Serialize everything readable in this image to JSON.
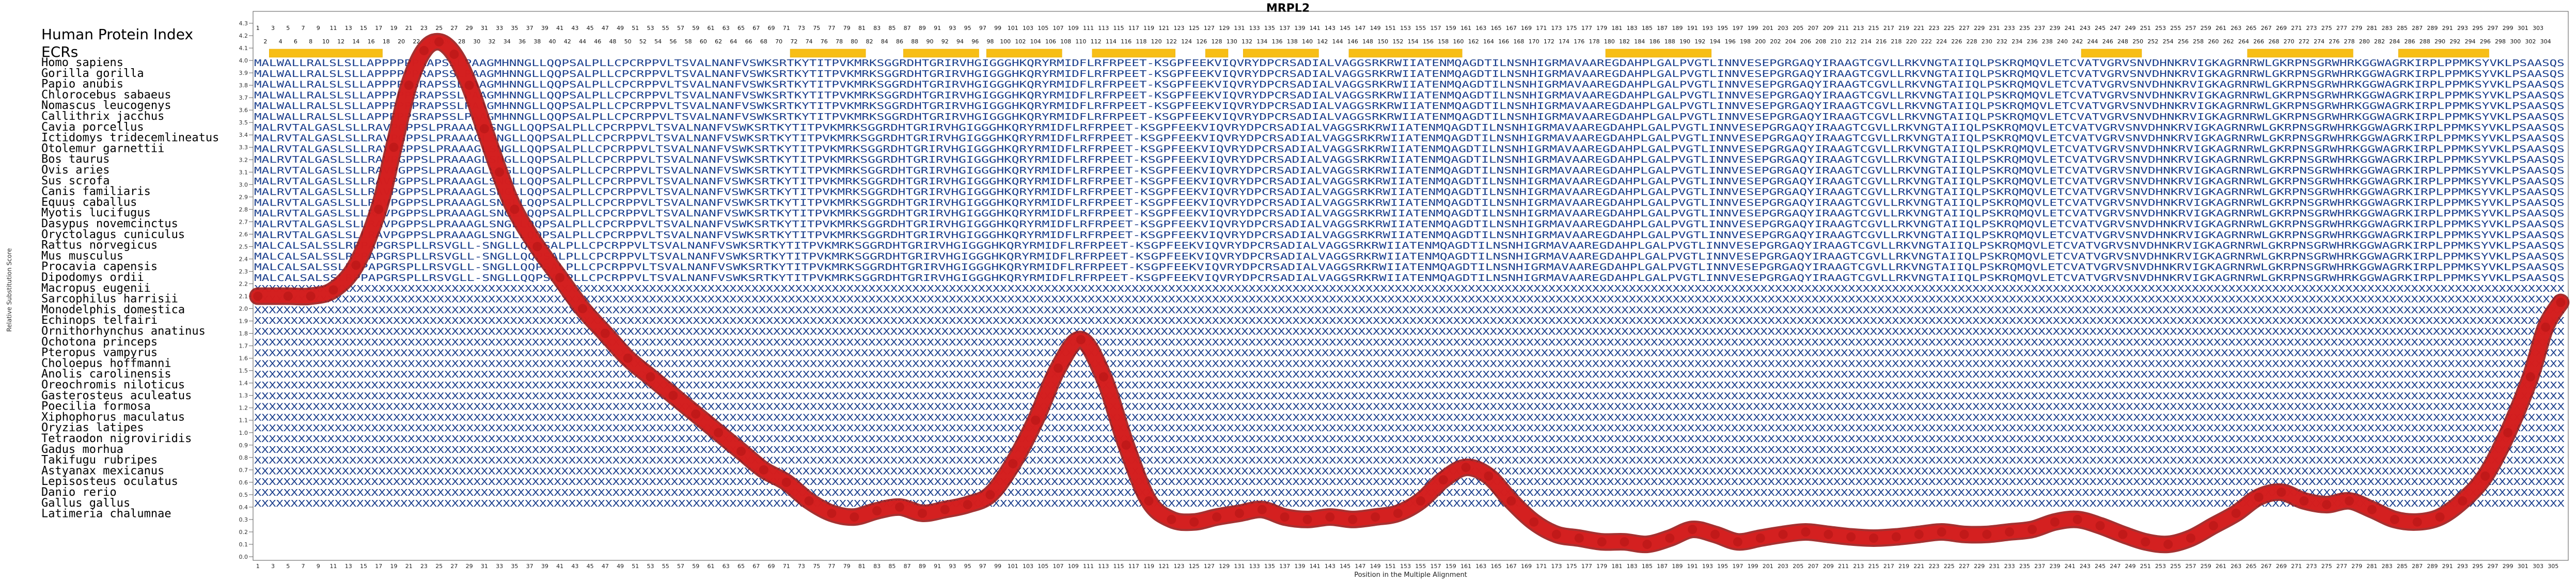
{
  "chart_data": {
    "type": "line",
    "title": "MRPL2",
    "xlabel": "Position in the Multiple Alignment",
    "ylabel": "Relative Substitution Score",
    "xlim": [
      1,
      306
    ],
    "ylim": [
      0.0,
      4.3
    ],
    "grid": false,
    "y_ticks": [
      "0.0",
      "0.1",
      "0.2",
      "0.3",
      "0.4",
      "0.5",
      "0.6",
      "0.7",
      "0.8",
      "0.9",
      "1.0",
      "1.1",
      "1.2",
      "1.3",
      "1.4",
      "1.5",
      "1.6",
      "1.7",
      "1.8",
      "1.9",
      "2.0",
      "2.1",
      "2.2",
      "2.3",
      "2.4",
      "2.5",
      "2.6",
      "2.7",
      "2.8",
      "2.9",
      "3.0",
      "3.1",
      "3.2",
      "3.3",
      "3.4",
      "3.5",
      "3.6",
      "3.7",
      "3.8",
      "3.9",
      "4.0",
      "4.1",
      "4.2",
      "4.3"
    ],
    "header_labels": [
      "Human Protein Index",
      "ECRs"
    ],
    "human_index_top_max": 304,
    "human_index_bottom_max": 303,
    "alignment_length": 306,
    "ecr_intervals": [
      [
        3,
        17
      ],
      [
        72,
        81
      ],
      [
        87,
        96
      ],
      [
        98,
        107
      ],
      [
        112,
        122
      ],
      [
        127,
        129
      ],
      [
        132,
        141
      ],
      [
        146,
        160
      ],
      [
        180,
        193
      ],
      [
        243,
        250
      ],
      [
        265,
        278
      ],
      [
        285,
        296
      ]
    ],
    "series": [
      {
        "x": [
          1,
          5,
          8,
          11,
          14,
          17,
          19,
          21,
          23,
          25,
          27,
          29,
          31,
          33,
          35,
          38,
          41,
          44,
          47,
          50,
          53,
          56,
          59,
          62,
          65,
          68,
          71,
          74,
          77,
          80,
          83,
          86,
          89,
          92,
          95,
          98,
          101,
          104,
          107,
          110,
          113,
          116,
          119,
          122,
          125,
          128,
          131,
          134,
          137,
          140,
          143,
          146,
          149,
          152,
          155,
          158,
          161,
          164,
          167,
          170,
          173,
          176,
          179,
          182,
          185,
          188,
          191,
          194,
          197,
          200,
          203,
          206,
          209,
          212,
          215,
          218,
          221,
          224,
          227,
          230,
          233,
          236,
          239,
          242,
          245,
          248,
          251,
          254,
          257,
          260,
          263,
          266,
          269,
          272,
          275,
          278,
          281,
          284,
          287,
          290,
          293,
          296,
          299,
          302,
          304,
          306
        ],
        "y": [
          2.1,
          2.1,
          2.1,
          2.15,
          2.35,
          2.8,
          3.3,
          3.8,
          4.08,
          4.15,
          4.05,
          3.8,
          3.45,
          3.1,
          2.8,
          2.5,
          2.25,
          2.0,
          1.8,
          1.6,
          1.45,
          1.3,
          1.15,
          1.0,
          0.85,
          0.7,
          0.6,
          0.45,
          0.35,
          0.32,
          0.37,
          0.4,
          0.35,
          0.38,
          0.42,
          0.5,
          0.75,
          1.1,
          1.52,
          1.75,
          1.45,
          0.9,
          0.45,
          0.3,
          0.28,
          0.32,
          0.35,
          0.38,
          0.32,
          0.3,
          0.32,
          0.3,
          0.32,
          0.35,
          0.45,
          0.62,
          0.72,
          0.65,
          0.45,
          0.28,
          0.18,
          0.15,
          0.12,
          0.12,
          0.1,
          0.15,
          0.22,
          0.18,
          0.12,
          0.15,
          0.18,
          0.2,
          0.18,
          0.16,
          0.15,
          0.16,
          0.18,
          0.2,
          0.18,
          0.18,
          0.2,
          0.22,
          0.28,
          0.3,
          0.25,
          0.18,
          0.12,
          0.1,
          0.15,
          0.25,
          0.35,
          0.48,
          0.52,
          0.45,
          0.42,
          0.45,
          0.38,
          0.3,
          0.28,
          0.32,
          0.45,
          0.65,
          1.0,
          1.45,
          1.85,
          2.05
        ]
      }
    ],
    "species": [
      "Homo sapiens",
      "Gorilla gorilla",
      "Papio anubis",
      "Chlorocebus sabaeus",
      "Nomascus leucogenys",
      "Callithrix jacchus",
      "Cavia porcellus",
      "Ictidomys tridecemlineatus",
      "Otolemur garnettii",
      "Bos taurus",
      "Ovis aries",
      "Sus scrofa",
      "Canis familiaris",
      "Equus caballus",
      "Myotis lucifugus",
      "Dasypus novemcinctus",
      "Oryctolagus cuniculus",
      "Rattus norvegicus",
      "Mus musculus",
      "Procavia capensis",
      "Dipodomys ordii",
      "Macropus eugenii",
      "Sarcophilus harrisii",
      "Monodelphis domestica",
      "Echinops telfairi",
      "Ornithorhynchus anatinus",
      "Ochotona princeps",
      "Pteropus vampyrus",
      "Choloepus hoffmanni",
      "Anolis carolinensis",
      "Oreochromis niloticus",
      "Gasterosteus aculeatus",
      "Poecilia formosa",
      "Xiphophorus maculatus",
      "Oryzias latipes",
      "Tetraodon nigroviridis",
      "Gadus morhua",
      "Takifugu rubripes",
      "Astyanax mexicanus",
      "Lepisosteus oculatus",
      "Danio rerio",
      "Gallus gallus",
      "Latimeria chalumnae"
    ],
    "alignment_rows": [
      "MALWALLRALSLSLLAPPPPPPRAPSSLPAAGMHNNGLLQQPSALPLLCPCRPPVLTSVALNANFVSWKSRTKYTITPVKMRKSGGRDHTGRIRVHGIGGGHKQRYRMIDFLRFRPEET-KSGPFEEKVIQVRYDPCRSADIALVAGGSRKRWIIATENMQAGDTILNSNHIGRMAVAAREGDAHPLGALPVGTLINNVESEPGRGAQYIRAAGTCGVLLRKVNGTAIIQLPSKRQMQVLETCVATVGRVSNVDHNKRVIGKAGRNRWLGKRPNSGRWHRKGGWAGRKIRPLPPMKSYVKLPSAASQS",
      "MALWALLRALSLSLLAPPPPPPRAPSSLPAAGMHNNGLLQQPSALPLLCPCRPPVLTSVALNANFVSWKSRTKYTITPVKMRKSGGRDHTGRIRVHGIGGGHKQRYRMIDFLRFRPEET-KSGPFEEKVIQVRYDPCRSADIALVAGGSRKRWIIATENMQAGDTILNSNHIGRMAVAAREGDAHPLGALPVGTLINNVESEPGRGAQYIRAAGTCGVLLRKVNGTAIIQLPSKRQMQVLETCVATVGRVSNVDHNKRVIGKAGRNRWLGKRPNSGRWHRKGGWAGRKIRPLPPMKSYVKLPSAASQS",
      "MALWALLRALSLSLLAPPPPPSRAPSSLPAAGMHNNGLLQQPSALPLLCPCRPPVLTSVALNANFVSWKSRTKYTITPVKMRKSGGRDHTGRIRVHGIGGGHKQRYRMIDFLRFRPEET-KSGPFEEKVIQVRYDPCRSADIALVAGGSRKRWIIATENMQAGDTILNSNHIGRMAVAAREGDAHPLGALPVGTLINNVESEPGRGAQYIRAAGTCGVLLRKVNGTAIIQLPSKRQMQVLETCVATVGRVSNVDHNKRVIGKAGRNRWLGKRPNSGRWHRKGGWAGRKIRPLPPMKSYVKLPSAASQS",
      "MALWALLRALSLSLLAPPPPPSRAPSSLPAAGMHNNGLLQQPSALPLLCPCRPPVLTSVALNANFVSWKSRTKYTITPVKMRKSGGRDHTGRIRVHGIGGGHKQRYRMIDFLRFRPEET-KSGPFEEKVIQVRYDPCRSADIALVAGGSRKRWIIATENMQAGDTILNSNHIGRMAVAAREGDAHPLGALPVGTLINNVESEPGRGAQYIRAAGTCGVLLRKVNGTAIIQLPSKRQMQVLETCVATVGRVSNVDHNKRVIGKAGRNRWLGKRPNSGRWHRKGGWAGRKIRPLPPMKSYVKLPSAASQS",
      "MALWALLRALSLSLLAPPPPPPRAPSSLPAAGMHNNGLLQQPSALPLLCPCRPPVLTSVALNANFVSWKSRTKYTITPVKMRKSGGRDHTGRIRVHGIGGGHKQRYRMIDFLRFRPEET-KSGPFEEKVIQVRYDPCRSADIALVAGGSRKRWIIATENMQAGDTILNSNHIGRMAVAAREGDAHPLGALPVGTLINNVESEPGRGAQYIRAAGTCGVLLRKVNGTAIIQLPSKRQMQVLETCVATVGRVSNVDHNKRVIGKAGRNRWLGKRPNSGRWHRKGGWAGRKIRPLPPMKSYVKLPSAASQS",
      "MALWALLRALSLSLLAPPPPPSRAPSSLPAAGMHNNGLLQQPSALPLLCPCRPPVLTSVALNANFVSWKSRTKYTITPVKMRKSGGRDHTGRIRVHGIGGGHKQRYRMIDFLRFRPEET-KSGPFEEKVIQVRYDPCRSADIALVAGGSRKRWIIATENMQAGDTILNSNHIGRMAVAAREGDAHPLGALPVGTLINNVESEPGRGAQYIRAAGTCGVLLRKVNGTAIIQLPSKRQMQVLETCVATVGRVSNVDHNKRVIGKAGRNRWLGKRPNSGRWHRKGGWAGRKIRPLPPMKSYVKLPSAASQS",
      "MALRVTALGASLSLLRAVPGPPSLPRAAAGLSNGLLQQPSALPLLCPCRPPVLTSVALNANFVSWKSRTKYTITPVKMRKSGGRDHTGRIRVHGIGGGHKQRYRMIDFLRFRPEET-KSGPFEEKVIQVRYDPCRSADIALVAGGSRKRWIIATENMQAGDTILNSNHIGRMAVAAREGDAHPLGALPVGTLINNVESEPGRGAQYIRAAGTCGVLLRKVNGTAIIQLPSKRQMQVLETCVATVGRVSNVDHNKRVIGKAGRNRWLGKRPNSGRWHRKGGWAGRKIRPLPPMKSYVKLPSAASQS",
      "MALRVTALGASLSLLRAVPGPPSLPRAAAGLSNGLLQQPSALPLLCPCRPPVLTSVALNANFVSWKSRTKYTITPVKMRKSGGRDHTGRIRVHGIGGGHKQRYRMIDFLRFRPEET-KSGPFEEKVIQVRYDPCRSADIALVAGGSRKRWIIATENMQAGDTILNSNHIGRMAVAAREGDAHPLGALPVGTLINNVESEPGRGAQYIRAAGTCGVLLRKVNGTAIIQLPSKRQMQVLETCVATVGRVSNVDHNKRVIGKAGRNRWLGKRPNSGRWHRKGGWAGRKIRPLPPMKSYVKLPSAASQS",
      "MALRVTALGASLSLLRAVPGPPSLPRAAAGLSNGLLQQPSALPLLCPCRPPVLTSVALNANFVSWKSRTKYTITPVKMRKSGGRDHTGRIRVHGIGGGHKQRYRMIDFLRFRPEET-KSGPFEEKVIQVRYDPCRSADIALVAGGSRKRWIIATENMQAGDTILNSNHIGRMAVAAREGDAHPLGALPVGTLINNVESEPGRGAQYIRAAGTCGVLLRKVNGTAIIQLPSKRQMQVLETCVATVGRVSNVDHNKRVIGKAGRNRWLGKRPNSGRWHRKGGWAGRKIRPLPPMKSYVKLPSAASQS",
      "MALRVTALGASLSLLRAVPGPPSLPRAAAGLSNGLLQQPSALPLLCPCRPPVLTSVALNANFVSWKSRTKYTITPVKMRKSGGRDHTGRIRVHGIGGGHKQRYRMIDFLRFRPEET-KSGPFEEKVIQVRYDPCRSADIALVAGGSRKRWIIATENMQAGDTILNSNHIGRMAVAAREGDAHPLGALPVGTLINNVESEPGRGAQYIRAAGTCGVLLRKVNGTAIIQLPSKRQMQVLETCVATVGRVSNVDHNKRVIGKAGRNRWLGKRPNSGRWHRKGGWAGRKIRPLPPMKSYVKLPSAASQS",
      "MALRVTALGASLSLLRAVPGPPSLPRAAAGLSNGLLQQPSALPLLCPCRPPVLTSVALNANFVSWKSRTKYTITPVKMRKSGGRDHTGRIRVHGIGGGHKQRYRMIDFLRFRPEET-KSGPFEEKVIQVRYDPCRSADIALVAGGSRKRWIIATENMQAGDTILNSNHIGRMAVAAREGDAHPLGALPVGTLINNVESEPGRGAQYIRAAGTCGVLLRKVNGTAIIQLPSKRQMQVLETCVATVGRVSNVDHNKRVIGKAGRNRWLGKRPNSGRWHRKGGWAGRKIRPLPPMKSYVKLPSAASQS",
      "MALRVTALGASLSLLRAVPGPPSLPRAAAGLSNGLLQQPSALPLLCPCRPPVLTSVALNANFVSWKSRTKYTITPVKMRKSGGRDHTGRIRVHGIGGGHKQRYRMIDFLRFRPEET-KSGPFEEKVIQVRYDPCRSADIALVAGGSRKRWIIATENMQAGDTILNSNHIGRMAVAAREGDAHPLGALPVGTLINNVESEPGRGAQYIRAAGTCGVLLRKVNGTAIIQLPSKRQMQVLETCVATVGRVSNVDHNKRVIGKAGRNRWLGKRPNSGRWHRKGGWAGRKIRPLPPMKSYVKLPSAASQS",
      "MALRVTALGASLSLLRAVPGPPSLPRAAAGLSNGLLQQPSALPLLCPCRPPVLTSVALNANFVSWKSRTKYTITPVKMRKSGGRDHTGRIRVHGIGGGHKQRYRMIDFLRFRPEET-KSGPFEEKVIQVRYDPCRSADIALVAGGSRKRWIIATENMQAGDTILNSNHIGRMAVAAREGDAHPLGALPVGTLINNVESEPGRGAQYIRAAGTCGVLLRKVNGTAIIQLPSKRQMQVLETCVATVGRVSNVDHNKRVIGKAGRNRWLGKRPNSGRWHRKGGWAGRKIRPLPPMKSYVKLPSAASQS",
      "MALRVTALGASLSLLRAVPGPPSLPRAAAGLSNGLLQQPSALPLLCPCRPPVLTSVALNANFVSWKSRTKYTITPVKMRKSGGRDHTGRIRVHGIGGGHKQRYRMIDFLRFRPEET-KSGPFEEKVIQVRYDPCRSADIALVAGGSRKRWIIATENMQAGDTILNSNHIGRMAVAAREGDAHPLGALPVGTLINNVESEPGRGAQYIRAAGTCGVLLRKVNGTAIIQLPSKRQMQVLETCVATVGRVSNVDHNKRVIGKAGRNRWLGKRPNSGRWHRKGGWAGRKIRPLPPMKSYVKLPSAASQS",
      "MALRVTALGASLSLLRAVPGPPSLPRAAAGLSNGLLQQPSALPLLCPCRPPVLTSVALNANFVSWKSRTKYTITPVKMRKSGGRDHTGRIRVHGIGGGHKQRYRMIDFLRFRPEET-KSGPFEEKVIQVRYDPCRSADIALVAGGSRKRWIIATENMQAGDTILNSNHIGRMAVAAREGDAHPLGALPVGTLINNVESEPGRGAQYIRAAGTCGVLLRKVNGTAIIQLPSKRQMQVLETCVATVGRVSNVDHNKRVIGKAGRNRWLGKRPNSGRWHRKGGWAGRKIRPLPPMKSYVKLPSAASQS",
      "MALRVTALGASLSLLRAVPGPPSLPRAAAGLSNGLLQQPSALPLLCPCRPPVLTSVALNANFVSWKSRTKYTITPVKMRKSGGRDHTGRIRVHGIGGGHKQRYRMIDFLRFRPEET-KSGPFEEKVIQVRYDPCRSADIALVAGGSRKRWIIATENMQAGDTILNSNHIGRMAVAAREGDAHPLGALPVGTLINNVESEPGRGAQYIRAAGTCGVLLRKVNGTAIIQLPSKRQMQVLETCVATVGRVSNVDHNKRVIGKAGRNRWLGKRPNSGRWHRKGGWAGRKIRPLPPMKSYVKLPSAASQS",
      "MALRVTALGASLSLLRAVPGPPSLPRAAAGLSNGLLQQPSALPLLCPCRPPVLTSVALNANFVSWKSRTKYTITPVKMRKSGGRDHTGRIRVHGIGGGHKQRYRMIDFLRFRPEET-KSGPFEEKVIQVRYDPCRSADIALVAGGSRKRWIIATENMQAGDTILNSNHIGRMAVAAREGDAHPLGALPVGTLINNVESEPGRGAQYIRAAGTCGVLLRKVNGTAIIQLPSKRQMQVLETCVATVGRVSNVDHNKRVIGKAGRNRWLGKRPNSGRWHRKGGWAGRKIRPLPPMKSYVKLPSAASQS",
      "MALCALSALSSLRPPAPGRSPLLRSVGLL-SNGLLQQPSALPLLCPCRPPVLTSVALNANFVSWKSRTKYTITPVKMRKSGGRDHTGRIRVHGIGGGHKQRYRMIDFLRFRPEET-KSGPFEEKVIQVRYDPCRSADIALVAGGSRKRWIIATENMQAGDTILNSNHIGRMAVAAREGDAHPLGALPVGTLINNVESEPGRGAQYIRAAGTCGVLLRKVNGTAIIQLPSKRQMQVLETCVATVGRVSNVDHNKRVIGKAGRNRWLGKRPNSGRWHRKGGWAGRKIRPLPPMKSYVKLPSAASQS",
      "MALCALSALSSLRPPAPGRSPLLRSVGLL-SNGLLQQPSALPLLCPCRPPVLTSVALNANFVSWKSRTKYTITPVKMRKSGGRDHTGRIRVHGIGGGHKQRYRMIDFLRFRPEET-KSGPFEEKVIQVRYDPCRSADIALVAGGSRKRWIIATENMQAGDTILNSNHIGRMAVAAREGDAHPLGALPVGTLINNVESEPGRGAQYIRAAGTCGVLLRKVNGTAIIQLPSKRQMQVLETCVATVGRVSNVDHNKRVIGKAGRNRWLGKRPNSGRWHRKGGWAGRKIRPLPPMKSYVKLPSAASQS",
      "MALCALSALSSLRPPAPGRSPLLRSVGLL-SNGLLQQPSALPLLCPCRPPVLTSVALNANFVSWKSRTKYTITPVKMRKSGGRDHTGRIRVHGIGGGHKQRYRMIDFLRFRPEET-KSGPFEEKVIQVRYDPCRSADIALVAGGSRKRWIIATENMQAGDTILNSNHIGRMAVAAREGDAHPLGALPVGTLINNVESEPGRGAQYIRAAGTCGVLLRKVNGTAIIQLPSKRQMQVLETCVATVGRVSNVDHNKRVIGKAGRNRWLGKRPNSGRWHRKGGWAGRKIRPLPPMKSYVKLPSAASQS",
      "MALCALSALSSLRPPAPGRSPLLRSVGLL-SNGLLQQPSALPLLCPCRPPVLTSVALNANFVSWKSRTKYTITPVKMRKSGGRDHTGRIRVHGIGGGHKQRYRMIDFLRFRPEET-KSGPFEEKVIQVRYDPCRSADIALVAGGSRKRWIIATENMQAGDTILNSNHIGRMAVAAREGDAHPLGALPVGTLINNVESEPGRGAQYIRAAGTCGVLLRKVNGTAIIQLPSKRQMQVLETCVATVGRVSNVDHNKRVIGKAGRNRWLGKRPNSGRWHRKGGWAGRKIRPLPPMKSYVKLPSAASQS",
      "XXXXXXXXXXXXXXXXXXXXXXXXXXXXXXXXXXXXXXXXXXXXXXXXXXXXXXXXXXXXXXXXXXXXXXXXXXXXXXXXXXXXXXXXXXXXXXXXXXXXXXXXXXXXXXXXXXXXXXXXXXXXXXXXXXXXXXXXXXXXXXXXXXXXXXXXXXXXXXXXXXXXXXXXXXXXXXXXXXXXXXXXXXXXXXXXXXXXXXXXXXXXXXXXXXXXXXXXXXXXXXXXXXXXXXXXXXXXXXXXXXXXXXXXXXXXXXXXXXXXXXXXXXXXXXXXXXXXXXXXXXXXXXXXXXXXXXXXXXXXXXXXXXXXXXXXXXXX",
      "XXXXXXXXXXXXXXXXXXXXXXXXXXXXXXXXXXXXXXXXXXXXXXXXXXXXXXXXXXXXXXXXXXXXXXXXXXXXXXXXXXXXXXXXXXXXXXXXXXXXXXXXXXXXXXXXXXXXXXXXXXXXXXXXXXXXXXXXXXXXXXXXXXXXXXXXXXXXXXXXXXXXXXXXXXXXXXXXXXXXXXXXXXXXXXXXXXXXXXXXXXXXXXXXXXXXXXXXXXXXXXXXXXXXXXXXXXXXXXXXXXXXXXXXXXXXXXXXXXXXXXXXXXXXXXXXXXXXXXXXXXXXXXXXXXXXXXXXXXXXXXXXXXXXXXXXXXXX",
      "XXXXXXXXXXXXXXXXXXXXXXXXXXXXXXXXXXXXXXXXXXXXXXXXXXXXXXXXXXXXXXXXXXXXXXXXXXXXXXXXXXXXXXXXXXXXXXXXXXXXXXXXXXXXXXXXXXXXXXXXXXXXXXXXXXXXXXXXXXXXXXXXXXXXXXXXXXXXXXXXXXXXXXXXXXXXXXXXXXXXXXXXXXXXXXXXXXXXXXXXXXXXXXXXXXXXXXXXXXXXXXXXXXXXXXXXXXXXXXXXXXXXXXXXXXXXXXXXXXXXXXXXXXXXXXXXXXXXXXXXXXXXXXXXXXXXXXXXXXXXXXXXXXXXXXXXXXXX",
      "XXXXXXXXXXXXXXXXXXXXXXXXXXXXXXXXXXXXXXXXXXXXXXXXXXXXXXXXXXXXXXXXXXXXXXXXXXXXXXXXXXXXXXXXXXXXXXXXXXXXXXXXXXXXXXXXXXXXXXXXXXXXXXXXXXXXXXXXXXXXXXXXXXXXXXXXXXXXXXXXXXXXXXXXXXXXXXXXXXXXXXXXXXXXXXXXXXXXXXXXXXXXXXXXXXXXXXXXXXXXXXXXXXXXXXXXXXXXXXXXXXXXXXXXXXXXXXXXXXXXXXXXXXXXXXXXXXXXXXXXXXXXXXXXXXXXXXXXXXXXXXXXXXXXXXXXXXXX",
      "XXXXXXXXXXXXXXXXXXXXXXXXXXXXXXXXXXXXXXXXXXXXXXXXXXXXXXXXXXXXXXXXXXXXXXXXXXXXXXXXXXXXXXXXXXXXXXXXXXXXXXXXXXXXXXXXXXXXXXXXXXXXXXXXXXXXXXXXXXXXXXXXXXXXXXXXXXXXXXXXXXXXXXXXXXXXXXXXXXXXXXXXXXXXXXXXXXXXXXXXXXXXXXXXXXXXXXXXXXXXXXXXXXXXXXXXXXXXXXXXXXXXXXXXXXXXXXXXXXXXXXXXXXXXXXXXXXXXXXXXXXXXXXXXXXXXXXXXXXXXXXXXXXXXXXXXXXXX",
      "XXXXXXXXXXXXXXXXXXXXXXXXXXXXXXXXXXXXXXXXXXXXXXXXXXXXXXXXXXXXXXXXXXXXXXXXXXXXXXXXXXXXXXXXXXXXXXXXXXXXXXXXXXXXXXXXXXXXXXXXXXXXXXXXXXXXXXXXXXXXXXXXXXXXXXXXXXXXXXXXXXXXXXXXXXXXXXXXXXXXXXXXXXXXXXXXXXXXXXXXXXXXXXXXXXXXXXXXXXXXXXXXXXXXXXXXXXXXXXXXXXXXXXXXXXXXXXXXXXXXXXXXXXXXXXXXXXXXXXXXXXXXXXXXXXXXXXXXXXXXXXXXXXXXXXXXXXXX",
      "XXXXXXXXXXXXXXXXXXXXXXXXXXXXXXXXXXXXXXXXXXXXXXXXXXXXXXXXXXXXXXXXXXXXXXXXXXXXXXXXXXXXXXXXXXXXXXXXXXXXXXXXXXXXXXXXXXXXXXXXXXXXXXXXXXXXXXXXXXXXXXXXXXXXXXXXXXXXXXXXXXXXXXXXXXXXXXXXXXXXXXXXXXXXXXXXXXXXXXXXXXXXXXXXXXXXXXXXXXXXXXXXXXXXXXXXXXXXXXXXXXXXXXXXXXXXXXXXXXXXXXXXXXXXXXXXXXXXXXXXXXXXXXXXXXXXXXXXXXXXXXXXXXXXXXXXXXXX",
      "XXXXXXXXXXXXXXXXXXXXXXXXXXXXXXXXXXXXXXXXXXXXXXXXXXXXXXXXXXXXXXXXXXXXXXXXXXXXXXXXXXXXXXXXXXXXXXXXXXXXXXXXXXXXXXXXXXXXXXXXXXXXXXXXXXXXXXXXXXXXXXXXXXXXXXXXXXXXXXXXXXXXXXXXXXXXXXXXXXXXXXXXXXXXXXXXXXXXXXXXXXXXXXXXXXXXXXXXXXXXXXXXXXXXXXXXXXXXXXXXXXXXXXXXXXXXXXXXXXXXXXXXXXXXXXXXXXXXXXXXXXXXXXXXXXXXXXXXXXXXXXXXXXXXXXXXXXXX",
      "XXXXXXXXXXXXXXXXXXXXXXXXXXXXXXXXXXXXXXXXXXXXXXXXXXXXXXXXXXXXXXXXXXXXXXXXXXXXXXXXXXXXXXXXXXXXXXXXXXXXXXXXXXXXXXXXXXXXXXXXXXXXXXXXXXXXXXXXXXXXXXXXXXXXXXXXXXXXXXXXXXXXXXXXXXXXXXXXXXXXXXXXXXXXXXXXXXXXXXXXXXXXXXXXXXXXXXXXXXXXXXXXXXXXXXXXXXXXXXXXXXXXXXXXXXXXXXXXXXXXXXXXXXXXXXXXXXXXXXXXXXXXXXXXXXXXXXXXXXXXXXXXXXXXXXXXXXXX",
      "XXXXXXXXXXXXXXXXXXXXXXXXXXXXXXXXXXXXXXXXXXXXXXXXXXXXXXXXXXXXXXXXXXXXXXXXXXXXXXXXXXXXXXXXXXXXXXXXXXXXXXXXXXXXXXXXXXXXXXXXXXXXXXXXXXXXXXXXXXXXXXXXXXXXXXXXXXXXXXXXXXXXXXXXXXXXXXXXXXXXXXXXXXXXXXXXXXXXXXXXXXXXXXXXXXXXXXXXXXXXXXXXXXXXXXXXXXXXXXXXXXXXXXXXXXXXXXXXXXXXXXXXXXXXXXXXXXXXXXXXXXXXXXXXXXXXXXXXXXXXXXXXXXXXXXXXXXXX",
      "XXXXXXXXXXXXXXXXXXXXXXXXXXXXXXXXXXXXXXXXXXXXXXXXXXXXXXXXXXXXXXXXXXXXXXXXXXXXXXXXXXXXXXXXXXXXXXXXXXXXXXXXXXXXXXXXXXXXXXXXXXXXXXXXXXXXXXXXXXXXXXXXXXXXXXXXXXXXXXXXXXXXXXXXXXXXXXXXXXXXXXXXXXXXXXXXXXXXXXXXXXXXXXXXXXXXXXXXXXXXXXXXXXXXXXXXXXXXXXXXXXXXXXXXXXXXXXXXXXXXXXXXXXXXXXXXXXXXXXXXXXXXXXXXXXXXXXXXXXXXXXXXXXXXXXXXXXXX",
      "XXXXXXXXXXXXXXXXXXXXXXXXXXXXXXXXXXXXXXXXXXXXXXXXXXXXXXXXXXXXXXXXXXXXXXXXXXXXXXXXXXXXXXXXXXXXXXXXXXXXXXXXXXXXXXXXXXXXXXXXXXXXXXXXXXXXXXXXXXXXXXXXXXXXXXXXXXXXXXXXXXXXXXXXXXXXXXXXXXXXXXXXXXXXXXXXXXXXXXXXXXXXXXXXXXXXXXXXXXXXXXXXXXXXXXXXXXXXXXXXXXXXXXXXXXXXXXXXXXXXXXXXXXXXXXXXXXXXXXXXXXXXXXXXXXXXXXXXXXXXXXXXXXXXXXXXXXXX",
      "XXXXXXXXXXXXXXXXXXXXXXXXXXXXXXXXXXXXXXXXXXXXXXXXXXXXXXXXXXXXXXXXXXXXXXXXXXXXXXXXXXXXXXXXXXXXXXXXXXXXXXXXXXXXXXXXXXXXXXXXXXXXXXXXXXXXXXXXXXXXXXXXXXXXXXXXXXXXXXXXXXXXXXXXXXXXXXXXXXXXXXXXXXXXXXXXXXXXXXXXXXXXXXXXXXXXXXXXXXXXXXXXXXXXXXXXXXXXXXXXXXXXXXXXXXXXXXXXXXXXXXXXXXXXXXXXXXXXXXXXXXXXXXXXXXXXXXXXXXXXXXXXXXXXXXXXXXXX",
      "XXXXXXXXXXXXXXXXXXXXXXXXXXXXXXXXXXXXXXXXXXXXXXXXXXXXXXXXXXXXXXXXXXXXXXXXXXXXXXXXXXXXXXXXXXXXXXXXXXXXXXXXXXXXXXXXXXXXXXXXXXXXXXXXXXXXXXXXXXXXXXXXXXXXXXXXXXXXXXXXXXXXXXXXXXXXXXXXXXXXXXXXXXXXXXXXXXXXXXXXXXXXXXXXXXXXXXXXXXXXXXXXXXXXXXXXXXXXXXXXXXXXXXXXXXXXXXXXXXXXXXXXXXXXXXXXXXXXXXXXXXXXXXXXXXXXXXXXXXXXXXXXXXXXXXXXXXXX",
      "XXXXXXXXXXXXXXXXXXXXXXXXXXXXXXXXXXXXXXXXXXXXXXXXXXXXXXXXXXXXXXXXXXXXXXXXXXXXXXXXXXXXXXXXXXXXXXXXXXXXXXXXXXXXXXXXXXXXXXXXXXXXXXXXXXXXXXXXXXXXXXXXXXXXXXXXXXXXXXXXXXXXXXXXXXXXXXXXXXXXXXXXXXXXXXXXXXXXXXXXXXXXXXXXXXXXXXXXXXXXXXXXXXXXXXXXXXXXXXXXXXXXXXXXXXXXXXXXXXXXXXXXXXXXXXXXXXXXXXXXXXXXXXXXXXXXXXXXXXXXXXXXXXXXXXXXXXXX",
      "XXXXXXXXXXXXXXXXXXXXXXXXXXXXXXXXXXXXXXXXXXXXXXXXXXXXXXXXXXXXXXXXXXXXXXXXXXXXXXXXXXXXXXXXXXXXXXXXXXXXXXXXXXXXXXXXXXXXXXXXXXXXXXXXXXXXXXXXXXXXXXXXXXXXXXXXXXXXXXXXXXXXXXXXXXXXXXXXXXXXXXXXXXXXXXXXXXXXXXXXXXXXXXXXXXXXXXXXXXXXXXXXXXXXXXXXXXXXXXXXXXXXXXXXXXXXXXXXXXXXXXXXXXXXXXXXXXXXXXXXXXXXXXXXXXXXXXXXXXXXXXXXXXXXXXXXXXXX",
      "XXXXXXXXXXXXXXXXXXXXXXXXXXXXXXXXXXXXXXXXXXXXXXXXXXXXXXXXXXXXXXXXXXXXXXXXXXXXXXXXXXXXXXXXXXXXXXXXXXXXXXXXXXXXXXXXXXXXXXXXXXXXXXXXXXXXXXXXXXXXXXXXXXXXXXXXXXXXXXXXXXXXXXXXXXXXXXXXXXXXXXXXXXXXXXXXXXXXXXXXXXXXXXXXXXXXXXXXXXXXXXXXXXXXXXXXXXXXXXXXXXXXXXXXXXXXXXXXXXXXXXXXXXXXXXXXXXXXXXXXXXXXXXXXXXXXXXXXXXXXXXXXXXXXXXXXXXXX",
      "XXXXXXXXXXXXXXXXXXXXXXXXXXXXXXXXXXXXXXXXXXXXXXXXXXXXXXXXXXXXXXXXXXXXXXXXXXXXXXXXXXXXXXXXXXXXXXXXXXXXXXXXXXXXXXXXXXXXXXXXXXXXXXXXXXXXXXXXXXXXXXXXXXXXXXXXXXXXXXXXXXXXXXXXXXXXXXXXXXXXXXXXXXXXXXXXXXXXXXXXXXXXXXXXXXXXXXXXXXXXXXXXXXXXXXXXXXXXXXXXXXXXXXXXXXXXXXXXXXXXXXXXXXXXXXXXXXXXXXXXXXXXXXXXXXXXXXXXXXXXXXXXXXXXXXXXXXXX",
      "XXXXXXXXXXXXXXXXXXXXXXXXXXXXXXXXXXXXXXXXXXXXXXXXXXXXXXXXXXXXXXXXXXXXXXXXXXXXXXXXXXXXXXXXXXXXXXXXXXXXXXXXXXXXXXXXXXXXXXXXXXXXXXXXXXXXXXXXXXXXXXXXXXXXXXXXXXXXXXXXXXXXXXXXXXXXXXXXXXXXXXXXXXXXXXXXXXXXXXXXXXXXXXXXXXXXXXXXXXXXXXXXXXXXXXXXXXXXXXXXXXXXXXXXXXXXXXXXXXXXXXXXXXXXXXXXXXXXXXXXXXXXXXXXXXXXXXXXXXXXXXXXXXXXXXXXXXXX",
      "XXXXXXXXXXXXXXXXXXXXXXXXXXXXXXXXXXXXXXXXXXXXXXXXXXXXXXXXXXXXXXXXXXXXXXXXXXXXXXXXXXXXXXXXXXXXXXXXXXXXXXXXXXXXXXXXXXXXXXXXXXXXXXXXXXXXXXXXXXXXXXXXXXXXXXXXXXXXXXXXXXXXXXXXXXXXXXXXXXXXXXXXXXXXXXXXXXXXXXXXXXXXXXXXXXXXXXXXXXXXXXXXXXXXXXXXXXXXXXXXXXXXXXXXXXXXXXXXXXXXXXXXXXXXXXXXXXXXXXXXXXXXXXXXXXXXXXXXXXXXXXXXXXXXXXXXXXXX",
      "XXXXXXXXXXXXXXXXXXXXXXXXXXXXXXXXXXXXXXXXXXXXXXXXXXXXXXXXXXXXXXXXXXXXXXXXXXXXXXXXXXXXXXXXXXXXXXXXXXXXXXXXXXXXXXXXXXXXXXXXXXXXXXXXXXXXXXXXXXXXXXXXXXXXXXXXXXXXXXXXXXXXXXXXXXXXXXXXXXXXXXXXXXXXXXXXXXXXXXXXXXXXXXXXXXXXXXXXXXXXXXXXXXXXXXXXXXXXXXXXXXXXXXXXXXXXXXXXXXXXXXXXXXXXXXXXXXXXXXXXXXXXXXXXXXXXXXXXXXXXXXXXXXXXXXXXXXXX"
    ]
  }
}
